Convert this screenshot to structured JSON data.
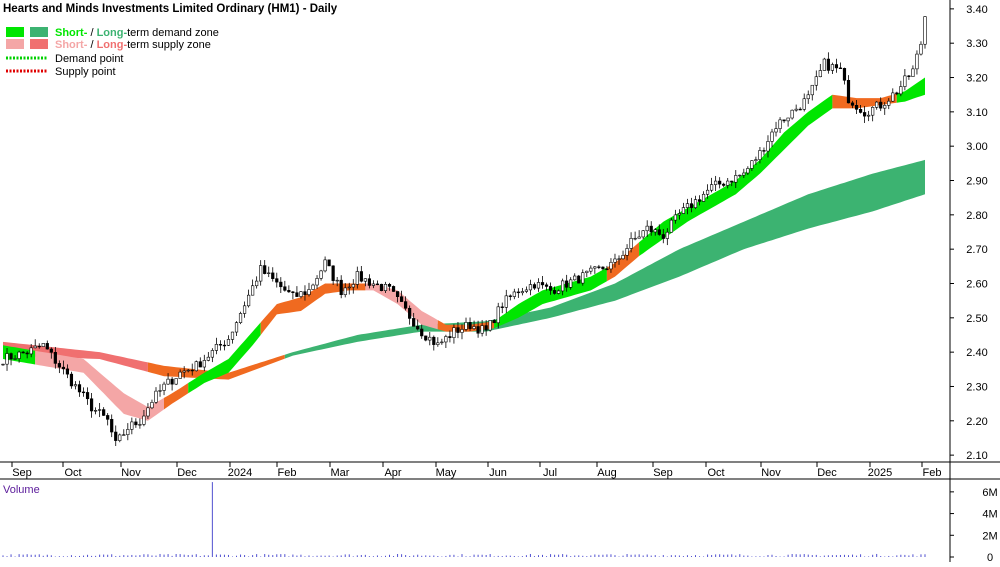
{
  "chart_data": {
    "type": "candlestick",
    "title": "Hearts and Minds Investments Limited Ordinary (HM1) - Daily",
    "legend": {
      "placement": "top-left",
      "items": [
        {
          "pre": "Short-",
          "mid": " / ",
          "post": "Long-",
          "tail": "-term demand zone",
          "swatch1": "#00e600",
          "swatch2": "#3cb371",
          "style": "box"
        },
        {
          "pre": "Short-",
          "mid": " / ",
          "post": "Long-",
          "tail": "-term supply zone",
          "swatch1": "#f4a6a6",
          "swatch2": "#f07070",
          "style": "box"
        },
        {
          "text": "Demand point",
          "swatch1": "#00d000",
          "style": "dots"
        },
        {
          "text": "Supply point",
          "swatch1": "#e00000",
          "style": "dots"
        }
      ],
      "short_word": "Short-",
      "long_word": "Long-",
      "slash": " / ",
      "demand_tail": "term demand zone",
      "supply_tail": "term supply zone",
      "demand_point": "Demand point",
      "supply_point": "Supply point"
    },
    "x_ticks": [
      "Sep",
      "Oct",
      "Nov",
      "Dec",
      "2024",
      "Feb",
      "Mar",
      "Apr",
      "May",
      "Jun",
      "Jul",
      "Aug",
      "Sep",
      "Oct",
      "Nov",
      "Dec",
      "2025",
      "Feb"
    ],
    "y_ticks": [
      "3.40",
      "3.30",
      "3.20",
      "3.10",
      "3.00",
      "2.90",
      "2.80",
      "2.70",
      "2.60",
      "2.50",
      "2.40",
      "2.30",
      "2.20",
      "2.10"
    ],
    "ylim": [
      2.08,
      3.42
    ],
    "price_series": {
      "name": "",
      "anchor_points": [
        [
          0,
          2.38
        ],
        [
          6,
          2.4
        ],
        [
          10,
          2.42
        ],
        [
          14,
          2.36
        ],
        [
          18,
          2.3
        ],
        [
          22,
          2.24
        ],
        [
          26,
          2.2
        ],
        [
          28,
          2.13
        ],
        [
          31,
          2.18
        ],
        [
          34,
          2.2
        ],
        [
          37,
          2.26
        ],
        [
          40,
          2.3
        ],
        [
          44,
          2.34
        ],
        [
          48,
          2.36
        ],
        [
          52,
          2.4
        ],
        [
          56,
          2.44
        ],
        [
          60,
          2.54
        ],
        [
          64,
          2.64
        ],
        [
          68,
          2.6
        ],
        [
          72,
          2.56
        ],
        [
          76,
          2.58
        ],
        [
          80,
          2.66
        ],
        [
          84,
          2.58
        ],
        [
          88,
          2.62
        ],
        [
          92,
          2.6
        ],
        [
          96,
          2.58
        ],
        [
          100,
          2.52
        ],
        [
          104,
          2.46
        ],
        [
          108,
          2.42
        ],
        [
          112,
          2.46
        ],
        [
          116,
          2.48
        ],
        [
          120,
          2.46
        ],
        [
          124,
          2.54
        ],
        [
          128,
          2.58
        ],
        [
          132,
          2.6
        ],
        [
          136,
          2.58
        ],
        [
          140,
          2.6
        ],
        [
          144,
          2.62
        ],
        [
          148,
          2.64
        ],
        [
          152,
          2.66
        ],
        [
          156,
          2.72
        ],
        [
          160,
          2.76
        ],
        [
          164,
          2.74
        ],
        [
          168,
          2.8
        ],
        [
          172,
          2.84
        ],
        [
          176,
          2.88
        ],
        [
          180,
          2.9
        ],
        [
          184,
          2.92
        ],
        [
          188,
          2.98
        ],
        [
          192,
          3.06
        ],
        [
          196,
          3.1
        ],
        [
          200,
          3.14
        ],
        [
          204,
          3.24
        ],
        [
          208,
          3.22
        ],
        [
          210,
          3.14
        ],
        [
          214,
          3.1
        ],
        [
          218,
          3.12
        ],
        [
          222,
          3.16
        ],
        [
          226,
          3.22
        ],
        [
          228,
          3.3
        ],
        [
          229,
          3.38
        ]
      ],
      "n_bars": 230
    },
    "short_term_zone": {
      "name": "",
      "segments_color_rule": "green when price above, orange when transitioning, pink when supply",
      "upper": [
        [
          0,
          2.42
        ],
        [
          20,
          2.38
        ],
        [
          30,
          2.28
        ],
        [
          36,
          2.24
        ],
        [
          42,
          2.28
        ],
        [
          50,
          2.34
        ],
        [
          56,
          2.38
        ],
        [
          62,
          2.46
        ],
        [
          68,
          2.54
        ],
        [
          74,
          2.56
        ],
        [
          80,
          2.6
        ],
        [
          86,
          2.6
        ],
        [
          92,
          2.6
        ],
        [
          98,
          2.58
        ],
        [
          104,
          2.52
        ],
        [
          110,
          2.48
        ],
        [
          116,
          2.48
        ],
        [
          122,
          2.49
        ],
        [
          128,
          2.54
        ],
        [
          134,
          2.58
        ],
        [
          140,
          2.6
        ],
        [
          146,
          2.62
        ],
        [
          152,
          2.66
        ],
        [
          158,
          2.72
        ],
        [
          164,
          2.78
        ],
        [
          170,
          2.82
        ],
        [
          176,
          2.86
        ],
        [
          182,
          2.9
        ],
        [
          188,
          2.96
        ],
        [
          194,
          3.04
        ],
        [
          200,
          3.1
        ],
        [
          206,
          3.15
        ],
        [
          212,
          3.14
        ],
        [
          218,
          3.14
        ],
        [
          224,
          3.16
        ],
        [
          229,
          3.2
        ]
      ],
      "lower": [
        [
          0,
          2.38
        ],
        [
          20,
          2.34
        ],
        [
          30,
          2.22
        ],
        [
          36,
          2.2
        ],
        [
          42,
          2.25
        ],
        [
          50,
          2.31
        ],
        [
          56,
          2.34
        ],
        [
          62,
          2.42
        ],
        [
          68,
          2.51
        ],
        [
          74,
          2.52
        ],
        [
          80,
          2.57
        ],
        [
          86,
          2.58
        ],
        [
          92,
          2.58
        ],
        [
          98,
          2.54
        ],
        [
          104,
          2.48
        ],
        [
          110,
          2.46
        ],
        [
          116,
          2.46
        ],
        [
          122,
          2.47
        ],
        [
          128,
          2.5
        ],
        [
          134,
          2.54
        ],
        [
          140,
          2.56
        ],
        [
          146,
          2.58
        ],
        [
          152,
          2.62
        ],
        [
          158,
          2.68
        ],
        [
          164,
          2.73
        ],
        [
          170,
          2.78
        ],
        [
          176,
          2.82
        ],
        [
          182,
          2.86
        ],
        [
          188,
          2.92
        ],
        [
          194,
          2.99
        ],
        [
          200,
          3.06
        ],
        [
          206,
          3.11
        ],
        [
          212,
          3.11
        ],
        [
          218,
          3.12
        ],
        [
          224,
          3.13
        ],
        [
          229,
          3.15
        ]
      ]
    },
    "long_term_zone": {
      "name": "",
      "upper": [
        [
          0,
          2.43
        ],
        [
          24,
          2.4
        ],
        [
          40,
          2.36
        ],
        [
          56,
          2.34
        ],
        [
          72,
          2.4
        ],
        [
          88,
          2.45
        ],
        [
          104,
          2.48
        ],
        [
          120,
          2.49
        ],
        [
          136,
          2.53
        ],
        [
          152,
          2.6
        ],
        [
          168,
          2.7
        ],
        [
          184,
          2.78
        ],
        [
          200,
          2.86
        ],
        [
          216,
          2.92
        ],
        [
          229,
          2.96
        ]
      ],
      "lower": [
        [
          0,
          2.39
        ],
        [
          24,
          2.38
        ],
        [
          40,
          2.33
        ],
        [
          56,
          2.32
        ],
        [
          72,
          2.39
        ],
        [
          88,
          2.43
        ],
        [
          104,
          2.46
        ],
        [
          120,
          2.46
        ],
        [
          136,
          2.5
        ],
        [
          152,
          2.55
        ],
        [
          168,
          2.62
        ],
        [
          184,
          2.7
        ],
        [
          200,
          2.76
        ],
        [
          216,
          2.81
        ],
        [
          229,
          2.86
        ]
      ]
    },
    "volume": {
      "label": "Volume",
      "y_ticks": [
        "6M",
        "4M",
        "2M",
        "0"
      ],
      "ylim": [
        0,
        7000000
      ],
      "spike": {
        "bar": 52,
        "value": 6900000
      },
      "typical": 150000
    },
    "colors": {
      "short_demand": "#00e600",
      "long_demand": "#3cb371",
      "short_supply": "#f4a6a6",
      "long_supply": "#f07070",
      "transition": "#f06a20",
      "candle": "#000000",
      "volume": "#5050d0",
      "volume_label": "#5a1a9a"
    },
    "grid": false
  }
}
